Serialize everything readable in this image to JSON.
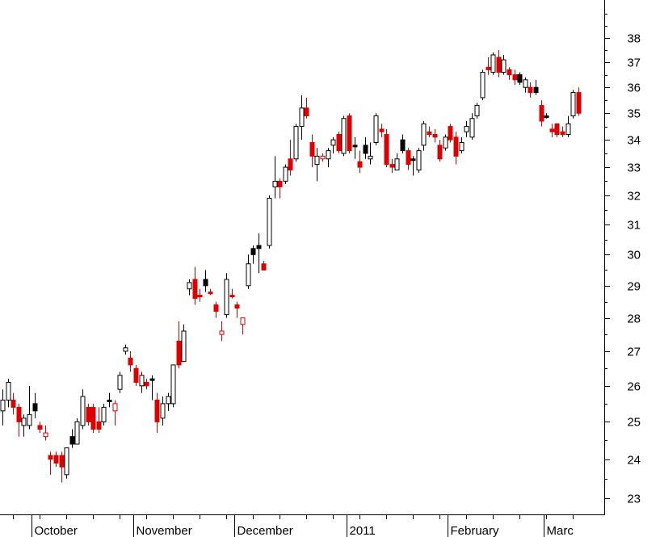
{
  "chart_data": {
    "type": "candlestick",
    "title": "",
    "xlabel": "",
    "ylabel": "",
    "y_scale": "log",
    "ylim": [
      22.6,
      39.6
    ],
    "y_ticks": [
      23,
      24,
      25,
      26,
      27,
      28,
      29,
      30,
      31,
      32,
      33,
      34,
      35,
      36,
      37,
      38
    ],
    "y_axis_side": "right",
    "grid": false,
    "legend": "none",
    "colors": {
      "up": "#ffffff",
      "down": "#dd0000",
      "neutral": "#000000",
      "outline": "#000000"
    },
    "x_labels": [
      {
        "label": "October",
        "index": 6
      },
      {
        "label": "November",
        "index": 25
      },
      {
        "label": "December",
        "index": 44
      },
      {
        "label": "2011",
        "index": 65
      },
      {
        "label": "February",
        "index": 84
      },
      {
        "label": "Marc",
        "index": 102
      }
    ],
    "series": [
      {
        "o": 25.3,
        "h": 25.9,
        "l": 24.9,
        "c": 25.6,
        "col": "up"
      },
      {
        "o": 25.6,
        "h": 26.2,
        "l": 25.4,
        "c": 26.1,
        "col": "up"
      },
      {
        "o": 25.6,
        "h": 25.8,
        "l": 25.2,
        "c": 25.4,
        "col": "down"
      },
      {
        "o": 25.4,
        "h": 25.5,
        "l": 24.6,
        "c": 25.0,
        "col": "down"
      },
      {
        "o": 24.9,
        "h": 25.2,
        "l": 24.6,
        "c": 25.1,
        "col": "up"
      },
      {
        "o": 24.9,
        "h": 26.0,
        "l": 24.8,
        "c": 25.2,
        "col": "up"
      },
      {
        "o": 25.5,
        "h": 25.8,
        "l": 25.1,
        "c": 25.3,
        "col": "neutral"
      },
      {
        "o": 24.9,
        "h": 25.0,
        "l": 24.7,
        "c": 24.8,
        "col": "down"
      },
      {
        "o": 24.6,
        "h": 24.9,
        "l": 24.5,
        "c": 24.7,
        "col": "down",
        "hollow": true
      },
      {
        "o": 24.1,
        "h": 24.2,
        "l": 23.6,
        "c": 24.0,
        "col": "down"
      },
      {
        "o": 24.1,
        "h": 24.2,
        "l": 23.8,
        "c": 23.9,
        "col": "down"
      },
      {
        "o": 24.1,
        "h": 24.2,
        "l": 23.4,
        "c": 23.8,
        "col": "down"
      },
      {
        "o": 23.6,
        "h": 24.3,
        "l": 23.5,
        "c": 24.3,
        "col": "up"
      },
      {
        "o": 24.4,
        "h": 24.8,
        "l": 24.3,
        "c": 24.6,
        "col": "neutral"
      },
      {
        "o": 24.4,
        "h": 25.1,
        "l": 24.4,
        "c": 25.0,
        "col": "up"
      },
      {
        "o": 24.9,
        "h": 25.9,
        "l": 24.8,
        "c": 25.7,
        "col": "up"
      },
      {
        "o": 25.4,
        "h": 25.5,
        "l": 24.9,
        "c": 25.0,
        "col": "down"
      },
      {
        "o": 25.4,
        "h": 25.5,
        "l": 24.7,
        "c": 24.8,
        "col": "down"
      },
      {
        "o": 25.0,
        "h": 25.4,
        "l": 24.7,
        "c": 24.8,
        "col": "down"
      },
      {
        "o": 25.0,
        "h": 25.5,
        "l": 24.9,
        "c": 25.4,
        "col": "up"
      },
      {
        "o": 25.6,
        "h": 25.8,
        "l": 25.4,
        "c": 25.6,
        "col": "neutral"
      },
      {
        "o": 25.3,
        "h": 25.6,
        "l": 24.9,
        "c": 25.5,
        "col": "down",
        "hollow": true
      },
      {
        "o": 25.9,
        "h": 26.4,
        "l": 25.8,
        "c": 26.3,
        "col": "up"
      },
      {
        "o": 27.0,
        "h": 27.2,
        "l": 26.9,
        "c": 27.1,
        "col": "up"
      },
      {
        "o": 26.8,
        "h": 27.0,
        "l": 26.4,
        "c": 26.6,
        "col": "down"
      },
      {
        "o": 26.5,
        "h": 26.6,
        "l": 26.0,
        "c": 26.1,
        "col": "down"
      },
      {
        "o": 26.3,
        "h": 26.4,
        "l": 25.8,
        "c": 26.0,
        "col": "up"
      },
      {
        "o": 26.1,
        "h": 26.2,
        "l": 25.9,
        "c": 26.0,
        "col": "down"
      },
      {
        "o": 26.2,
        "h": 26.3,
        "l": 25.6,
        "c": 26.2,
        "col": "neutral"
      },
      {
        "o": 25.6,
        "h": 25.8,
        "l": 24.7,
        "c": 25.0,
        "col": "down"
      },
      {
        "o": 25.1,
        "h": 25.7,
        "l": 24.9,
        "c": 25.5,
        "col": "up"
      },
      {
        "o": 25.5,
        "h": 25.8,
        "l": 25.3,
        "c": 25.7,
        "col": "up"
      },
      {
        "o": 25.5,
        "h": 26.6,
        "l": 25.4,
        "c": 26.6,
        "col": "up"
      },
      {
        "o": 27.3,
        "h": 27.9,
        "l": 26.5,
        "c": 26.6,
        "col": "down"
      },
      {
        "o": 26.7,
        "h": 27.8,
        "l": 26.7,
        "c": 27.6,
        "col": "up"
      },
      {
        "o": 28.9,
        "h": 29.2,
        "l": 28.7,
        "c": 29.1,
        "col": "up"
      },
      {
        "o": 29.2,
        "h": 29.6,
        "l": 28.4,
        "c": 28.6,
        "col": "down"
      },
      {
        "o": 28.7,
        "h": 28.9,
        "l": 28.5,
        "c": 28.7,
        "col": "down"
      },
      {
        "o": 29.0,
        "h": 29.5,
        "l": 28.8,
        "c": 29.2,
        "col": "neutral"
      },
      {
        "o": 28.8,
        "h": 28.9,
        "l": 28.7,
        "c": 28.8,
        "col": "down"
      },
      {
        "o": 28.4,
        "h": 28.5,
        "l": 28.0,
        "c": 28.2,
        "col": "down"
      },
      {
        "o": 27.6,
        "h": 27.9,
        "l": 27.3,
        "c": 27.5,
        "col": "down",
        "hollow": true
      },
      {
        "o": 28.1,
        "h": 29.4,
        "l": 28.0,
        "c": 29.2,
        "col": "up"
      },
      {
        "o": 28.7,
        "h": 28.9,
        "l": 28.6,
        "c": 28.7,
        "col": "down"
      },
      {
        "o": 28.4,
        "h": 28.5,
        "l": 28.0,
        "c": 28.3,
        "col": "down"
      },
      {
        "o": 27.8,
        "h": 28.0,
        "l": 27.5,
        "c": 28.0,
        "col": "down",
        "hollow": true
      },
      {
        "o": 29.0,
        "h": 30.0,
        "l": 28.9,
        "c": 29.7,
        "col": "up"
      },
      {
        "o": 30.0,
        "h": 30.3,
        "l": 29.7,
        "c": 30.2,
        "col": "neutral"
      },
      {
        "o": 30.2,
        "h": 30.7,
        "l": 29.4,
        "c": 30.3,
        "col": "neutral"
      },
      {
        "o": 29.7,
        "h": 29.8,
        "l": 29.5,
        "c": 29.5,
        "col": "down"
      },
      {
        "o": 30.3,
        "h": 32.0,
        "l": 30.2,
        "c": 31.9,
        "col": "up"
      },
      {
        "o": 32.3,
        "h": 33.4,
        "l": 31.9,
        "c": 32.5,
        "col": "up"
      },
      {
        "o": 32.5,
        "h": 32.6,
        "l": 31.9,
        "c": 32.3,
        "col": "down"
      },
      {
        "o": 32.5,
        "h": 33.1,
        "l": 32.4,
        "c": 33.0,
        "col": "up"
      },
      {
        "o": 33.3,
        "h": 34.0,
        "l": 32.7,
        "c": 32.9,
        "col": "down"
      },
      {
        "o": 33.3,
        "h": 34.6,
        "l": 33.2,
        "c": 34.5,
        "col": "up"
      },
      {
        "o": 34.5,
        "h": 35.7,
        "l": 34.0,
        "c": 35.2,
        "col": "up"
      },
      {
        "o": 35.2,
        "h": 35.6,
        "l": 34.8,
        "c": 34.9,
        "col": "down"
      },
      {
        "o": 33.9,
        "h": 34.2,
        "l": 33.0,
        "c": 33.4,
        "col": "down"
      },
      {
        "o": 33.1,
        "h": 33.7,
        "l": 32.5,
        "c": 33.4,
        "col": "up"
      },
      {
        "o": 33.3,
        "h": 33.5,
        "l": 33.2,
        "c": 33.4,
        "col": "down",
        "hollow": true
      },
      {
        "o": 33.3,
        "h": 33.7,
        "l": 33.0,
        "c": 33.6,
        "col": "up"
      },
      {
        "o": 33.8,
        "h": 34.1,
        "l": 33.5,
        "c": 34.0,
        "col": "up"
      },
      {
        "o": 34.2,
        "h": 34.3,
        "l": 33.5,
        "c": 33.6,
        "col": "down"
      },
      {
        "o": 33.5,
        "h": 34.9,
        "l": 33.4,
        "c": 34.8,
        "col": "up"
      },
      {
        "o": 34.9,
        "h": 35.0,
        "l": 33.5,
        "c": 33.6,
        "col": "down"
      },
      {
        "o": 33.8,
        "h": 34.1,
        "l": 33.3,
        "c": 33.8,
        "col": "neutral"
      },
      {
        "o": 33.2,
        "h": 33.6,
        "l": 32.8,
        "c": 33.0,
        "col": "down"
      },
      {
        "o": 33.8,
        "h": 34.1,
        "l": 33.3,
        "c": 33.5,
        "col": "neutral"
      },
      {
        "o": 33.3,
        "h": 33.9,
        "l": 33.1,
        "c": 33.4,
        "col": "up"
      },
      {
        "o": 33.9,
        "h": 35.0,
        "l": 33.8,
        "c": 34.9,
        "col": "up"
      },
      {
        "o": 34.4,
        "h": 34.6,
        "l": 34.1,
        "c": 34.3,
        "col": "down"
      },
      {
        "o": 34.2,
        "h": 34.4,
        "l": 33.0,
        "c": 33.1,
        "col": "down"
      },
      {
        "o": 33.1,
        "h": 33.3,
        "l": 32.8,
        "c": 33.0,
        "col": "down"
      },
      {
        "o": 32.9,
        "h": 33.5,
        "l": 32.9,
        "c": 33.3,
        "col": "up"
      },
      {
        "o": 34.0,
        "h": 34.2,
        "l": 33.5,
        "c": 33.6,
        "col": "neutral"
      },
      {
        "o": 33.6,
        "h": 33.7,
        "l": 32.9,
        "c": 33.1,
        "col": "down"
      },
      {
        "o": 33.3,
        "h": 33.4,
        "l": 32.7,
        "c": 33.3,
        "col": "neutral"
      },
      {
        "o": 32.9,
        "h": 33.7,
        "l": 32.8,
        "c": 33.6,
        "col": "up"
      },
      {
        "o": 33.8,
        "h": 34.7,
        "l": 33.6,
        "c": 34.6,
        "col": "up"
      },
      {
        "o": 34.3,
        "h": 34.5,
        "l": 34.1,
        "c": 34.2,
        "col": "down"
      },
      {
        "o": 34.2,
        "h": 34.4,
        "l": 33.9,
        "c": 34.1,
        "col": "down"
      },
      {
        "o": 33.8,
        "h": 34.0,
        "l": 33.2,
        "c": 33.3,
        "col": "down"
      },
      {
        "o": 33.7,
        "h": 34.2,
        "l": 33.6,
        "c": 34.1,
        "col": "up"
      },
      {
        "o": 34.5,
        "h": 34.6,
        "l": 33.9,
        "c": 34.0,
        "col": "down"
      },
      {
        "o": 34.1,
        "h": 34.3,
        "l": 33.1,
        "c": 33.4,
        "col": "down"
      },
      {
        "o": 33.6,
        "h": 34.1,
        "l": 33.5,
        "c": 33.9,
        "col": "up"
      },
      {
        "o": 34.3,
        "h": 34.7,
        "l": 34.1,
        "c": 34.5,
        "col": "up"
      },
      {
        "o": 34.1,
        "h": 35.0,
        "l": 34.0,
        "c": 34.8,
        "col": "up"
      },
      {
        "o": 34.9,
        "h": 35.4,
        "l": 34.8,
        "c": 35.3,
        "col": "up"
      },
      {
        "o": 35.6,
        "h": 36.7,
        "l": 35.5,
        "c": 36.6,
        "col": "up"
      },
      {
        "o": 36.8,
        "h": 37.2,
        "l": 36.5,
        "c": 36.7,
        "col": "down"
      },
      {
        "o": 36.6,
        "h": 37.4,
        "l": 36.5,
        "c": 37.3,
        "col": "up"
      },
      {
        "o": 37.2,
        "h": 37.5,
        "l": 36.4,
        "c": 36.6,
        "col": "down"
      },
      {
        "o": 36.6,
        "h": 37.3,
        "l": 36.5,
        "c": 37.1,
        "col": "up"
      },
      {
        "o": 36.7,
        "h": 36.8,
        "l": 36.3,
        "c": 36.5,
        "col": "down"
      },
      {
        "o": 36.5,
        "h": 36.7,
        "l": 36.1,
        "c": 36.3,
        "col": "down"
      },
      {
        "o": 36.2,
        "h": 36.6,
        "l": 36.1,
        "c": 36.5,
        "col": "neutral"
      },
      {
        "o": 36.0,
        "h": 36.4,
        "l": 35.8,
        "c": 36.3,
        "col": "up"
      },
      {
        "o": 36.0,
        "h": 36.2,
        "l": 35.6,
        "c": 35.8,
        "col": "down"
      },
      {
        "o": 35.8,
        "h": 36.3,
        "l": 35.7,
        "c": 36.0,
        "col": "neutral"
      },
      {
        "o": 35.3,
        "h": 35.5,
        "l": 34.5,
        "c": 34.7,
        "col": "down"
      },
      {
        "o": 34.9,
        "h": 35.0,
        "l": 34.8,
        "c": 34.9,
        "col": "neutral"
      },
      {
        "o": 34.4,
        "h": 34.6,
        "l": 34.1,
        "c": 34.3,
        "col": "down"
      },
      {
        "o": 34.6,
        "h": 34.6,
        "l": 34.1,
        "c": 34.2,
        "col": "down"
      },
      {
        "o": 34.2,
        "h": 34.5,
        "l": 34.1,
        "c": 34.3,
        "col": "down"
      },
      {
        "o": 34.2,
        "h": 34.9,
        "l": 34.1,
        "c": 34.6,
        "col": "up"
      },
      {
        "o": 34.9,
        "h": 35.9,
        "l": 34.8,
        "c": 35.8,
        "col": "up"
      },
      {
        "o": 35.8,
        "h": 36.0,
        "l": 34.9,
        "c": 35.0,
        "col": "down"
      }
    ]
  }
}
